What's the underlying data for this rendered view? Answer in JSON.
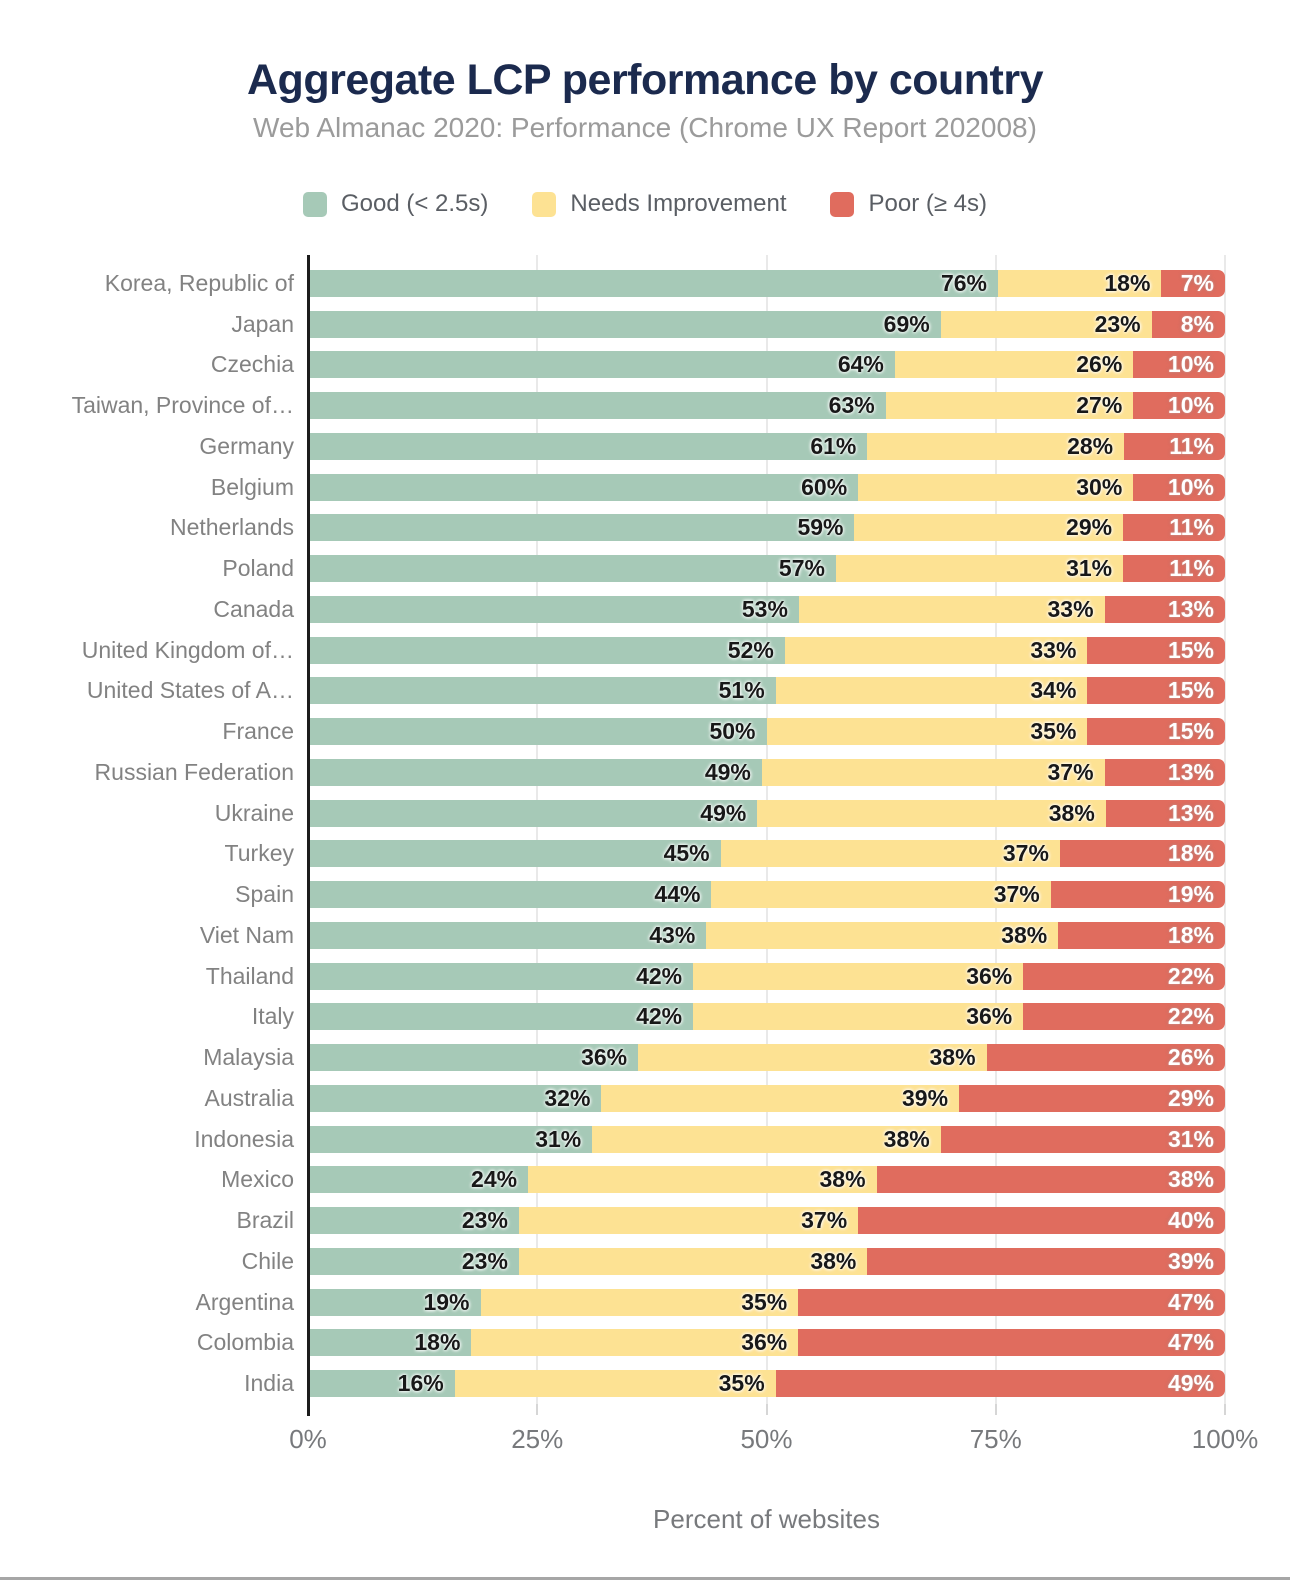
{
  "title": "Aggregate LCP performance by country",
  "subtitle": "Web Almanac 2020: Performance (Chrome UX Report 202008)",
  "legend": [
    {
      "label": "Good (< 2.5s)",
      "color": "#a6c9b7"
    },
    {
      "label": "Needs Improvement",
      "color": "#fde293"
    },
    {
      "label": "Poor (≥ 4s)",
      "color": "#e06c5e"
    }
  ],
  "colors": {
    "title": "#1b2a4e",
    "subtitle": "#9b9b9b",
    "good": "#a6c9b7",
    "needs_improvement": "#fde293",
    "poor": "#e06c5e",
    "gridline": "#e9e9e9",
    "axis_line": "#1c1c1c"
  },
  "chart_data": {
    "type": "bar",
    "orientation": "horizontal",
    "stacked": true,
    "title": "Aggregate LCP performance by country",
    "subtitle": "Web Almanac 2020: Performance (Chrome UX Report 202008)",
    "xlabel": "Percent of websites",
    "ylabel": "",
    "xlim": [
      0,
      100
    ],
    "x_ticks": [
      "0%",
      "25%",
      "50%",
      "75%",
      "100%"
    ],
    "grid": true,
    "legend_position": "top",
    "value_suffix": "%",
    "categories": [
      "Korea, Republic of",
      "Japan",
      "Czechia",
      "Taiwan, Province of…",
      "Germany",
      "Belgium",
      "Netherlands",
      "Poland",
      "Canada",
      "United Kingdom of…",
      "United States of A…",
      "France",
      "Russian Federation",
      "Ukraine",
      "Turkey",
      "Spain",
      "Viet Nam",
      "Thailand",
      "Italy",
      "Malaysia",
      "Australia",
      "Indonesia",
      "Mexico",
      "Brazil",
      "Chile",
      "Argentina",
      "Colombia",
      "India"
    ],
    "series": [
      {
        "name": "Good (< 2.5s)",
        "key": "good",
        "color": "#a6c9b7",
        "values": [
          76,
          69,
          64,
          63,
          61,
          60,
          59,
          57,
          53,
          52,
          51,
          50,
          49,
          49,
          45,
          44,
          43,
          42,
          42,
          36,
          32,
          31,
          24,
          23,
          23,
          19,
          18,
          16
        ]
      },
      {
        "name": "Needs Improvement",
        "key": "needs-improvement",
        "color": "#fde293",
        "values": [
          18,
          23,
          26,
          27,
          28,
          30,
          29,
          31,
          33,
          33,
          34,
          35,
          37,
          38,
          37,
          37,
          38,
          36,
          36,
          38,
          39,
          38,
          38,
          37,
          38,
          35,
          36,
          35
        ]
      },
      {
        "name": "Poor (≥ 4s)",
        "key": "poor",
        "color": "#e06c5e",
        "values": [
          7,
          8,
          10,
          10,
          11,
          10,
          11,
          11,
          13,
          15,
          15,
          15,
          13,
          13,
          18,
          19,
          18,
          22,
          22,
          26,
          29,
          31,
          38,
          40,
          39,
          47,
          47,
          49
        ]
      }
    ]
  }
}
